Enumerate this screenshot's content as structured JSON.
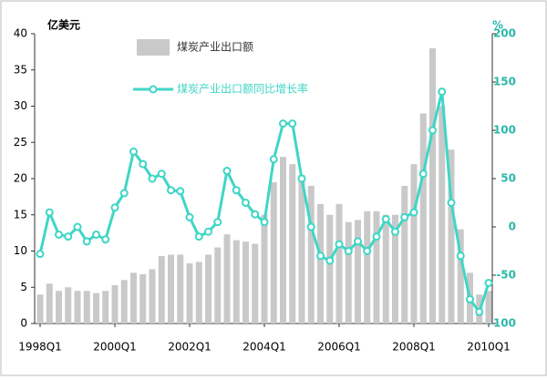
{
  "chart_data": {
    "type": "combo",
    "y_label": "亿美元",
    "y2_label": "%",
    "categories": [
      "1998Q1",
      null,
      null,
      null,
      null,
      null,
      null,
      null,
      "2000Q1",
      null,
      null,
      null,
      null,
      null,
      null,
      null,
      "2002Q1",
      null,
      null,
      null,
      null,
      null,
      null,
      null,
      "2004Q1",
      null,
      null,
      null,
      null,
      null,
      null,
      null,
      "2006Q1",
      null,
      null,
      null,
      null,
      null,
      null,
      null,
      "2008Q1",
      null,
      null,
      null,
      null,
      null,
      null,
      null,
      "2010Q1"
    ],
    "series": [
      {
        "name": "煤炭产业出口额",
        "type": "bar",
        "color": "#c9c9c9",
        "values": [
          4,
          5.5,
          4.5,
          5,
          4.5,
          4.5,
          4.2,
          4.5,
          5.3,
          6,
          7,
          6.8,
          7.5,
          9.3,
          9.5,
          9.5,
          8.3,
          8.5,
          9.5,
          10.5,
          12.3,
          11.5,
          11.3,
          11,
          15,
          19.5,
          23,
          22,
          20.5,
          19,
          16.5,
          15,
          16.5,
          14,
          14.3,
          15.5,
          15.5,
          15,
          15,
          19,
          22,
          29,
          38,
          30,
          24,
          13,
          7,
          4,
          4.5
        ]
      },
      {
        "name": "煤炭产业出口额同比增长率",
        "type": "line",
        "axis": "y2",
        "color": "#3fd6c6",
        "values": [
          -28,
          15,
          -8,
          -10,
          0,
          -15,
          -8,
          -13,
          20,
          35,
          78,
          65,
          50,
          55,
          38,
          37,
          10,
          -10,
          -5,
          5,
          58,
          38,
          25,
          13,
          5,
          70,
          107,
          107,
          50,
          0,
          -30,
          -35,
          -18,
          -25,
          -15,
          -25,
          -10,
          8,
          -5,
          10,
          15,
          55,
          100,
          140,
          25,
          -30,
          -75,
          -88,
          -58
        ]
      }
    ],
    "ylim": [
      0,
      40
    ],
    "yticks": [
      0,
      5,
      10,
      15,
      20,
      25,
      30,
      35,
      40
    ],
    "y2lim": [
      -100,
      200
    ],
    "y2ticks": [
      -100,
      -50,
      0,
      50,
      100,
      150,
      200
    ]
  }
}
